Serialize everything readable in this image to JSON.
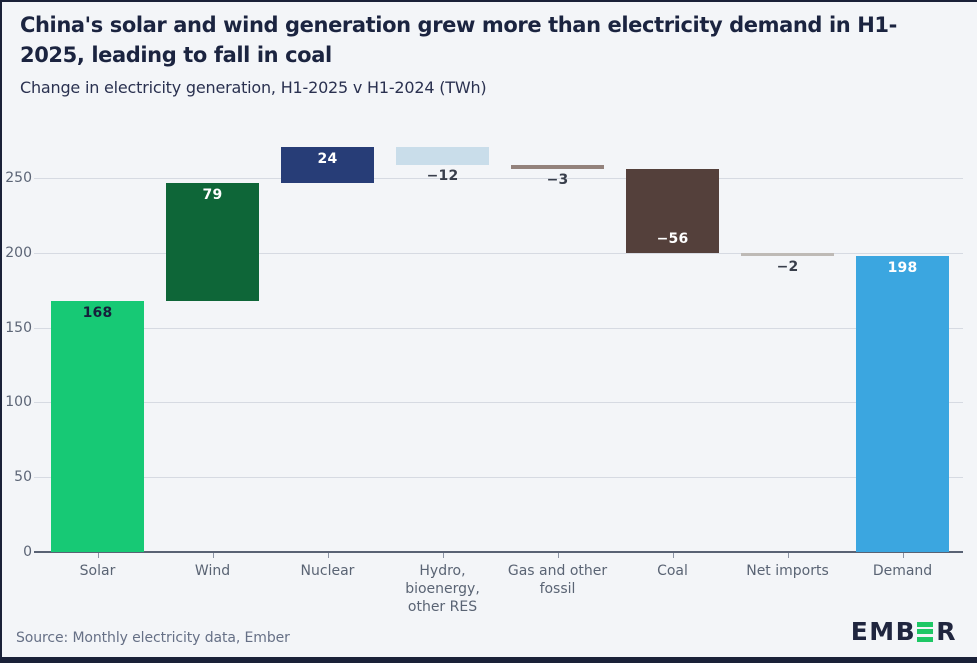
{
  "header": {
    "title": "China's solar and wind generation grew more than electricity demand in H1-2025, leading to fall in coal",
    "subtitle": "Change in electricity generation, H1-2025 v H1-2024 (TWh)"
  },
  "chart_data": {
    "type": "waterfall",
    "title": "China's solar and wind generation grew more than electricity demand in H1-2025, leading to fall in coal",
    "subtitle": "Change in electricity generation, H1-2025 v H1-2024 (TWh)",
    "unit": "TWh",
    "grid": "horizontal",
    "legend": "none",
    "ylim": [
      0,
      275.5
    ],
    "yticks": [
      0,
      50,
      100,
      150,
      200,
      250
    ],
    "categories": [
      "Solar",
      "Wind",
      "Nuclear",
      "Hydro,\nbioenergy,\nother RES",
      "Gas and other\nfossil",
      "Coal",
      "Net imports",
      "Demand"
    ],
    "series": [
      {
        "category": "Solar",
        "value": 168,
        "label": "168",
        "kind": "delta",
        "color": "#17C975",
        "label_style": "inside-top-dark"
      },
      {
        "category": "Wind",
        "value": 79,
        "label": "79",
        "kind": "delta",
        "color": "#0E6638",
        "label_style": "inside-top-light"
      },
      {
        "category": "Nuclear",
        "value": 24,
        "label": "24",
        "kind": "delta",
        "color": "#273D77",
        "label_style": "inside-top-light"
      },
      {
        "category": "Hydro,\nbioenergy,\nother RES",
        "value": -12,
        "label": "−12",
        "kind": "delta",
        "color": "#C9DDEA",
        "label_style": "below-dark"
      },
      {
        "category": "Gas and other\nfossil",
        "value": -3,
        "label": "−3",
        "kind": "delta",
        "color": "#93827C",
        "label_style": "below-dark"
      },
      {
        "category": "Coal",
        "value": -56,
        "label": "−56",
        "kind": "delta",
        "color": "#54403B",
        "label_style": "inside-bottom-light"
      },
      {
        "category": "Net imports",
        "value": -2,
        "label": "−2",
        "kind": "delta",
        "color": "#BEBAB6",
        "label_style": "below-dark"
      },
      {
        "category": "Demand",
        "value": 198,
        "label": "198",
        "kind": "total",
        "color": "#3BA6E0",
        "label_style": "inside-top-light"
      }
    ]
  },
  "footer": {
    "source": "Source: Monthly electricity data, Ember",
    "logo": {
      "text_left": "EMB",
      "text_right": "R",
      "e_icon": "three-green-bars",
      "green": "#1EC765",
      "dark": "#20263F"
    }
  },
  "colors": {
    "background": "#F3F5F8",
    "frame": "#1A2138",
    "title_text": "#1B2440",
    "subtitle_text": "#2A3150",
    "grid_line": "#D6DAE2",
    "axis_line": "#596274",
    "tick_mark": "#8A93A4",
    "tick_label": "#5C6576",
    "x_label": "#5A6474",
    "value_label_dark": "#16203B",
    "value_label_light": "#FFFFFF",
    "value_label_below": "#383E4B",
    "source_text": "#667086"
  }
}
